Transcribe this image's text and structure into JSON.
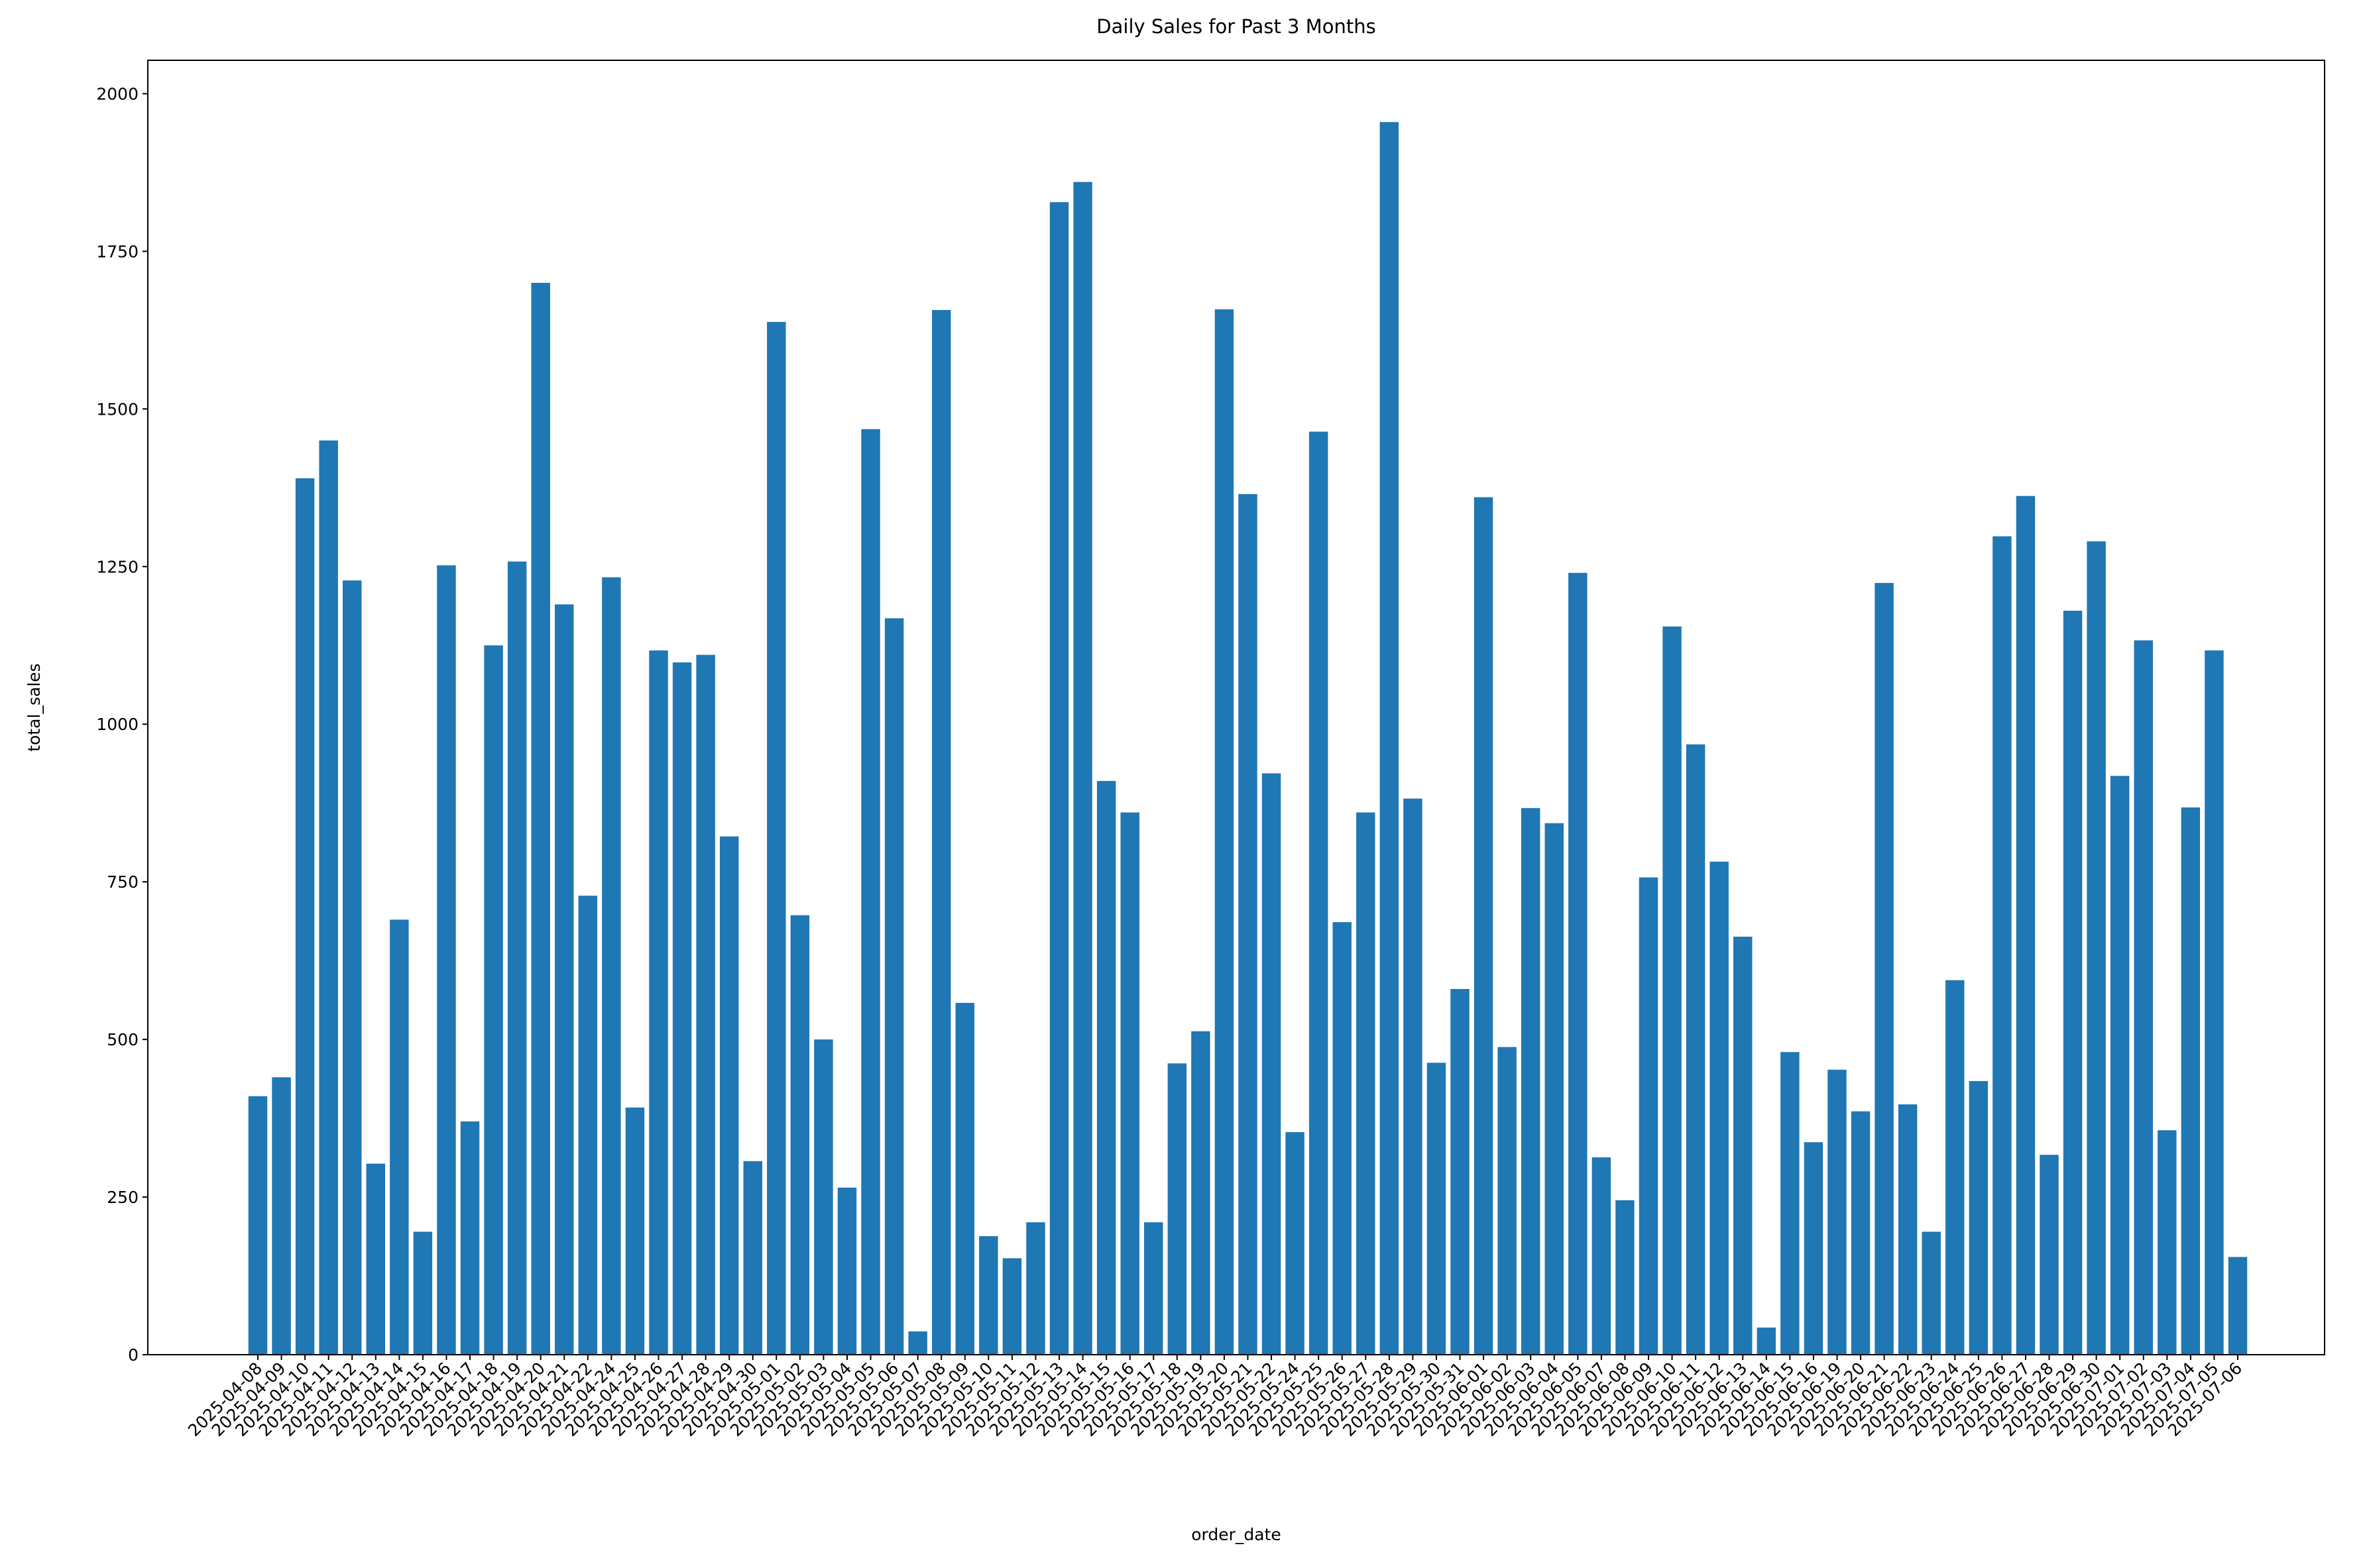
{
  "chart_data": {
    "type": "bar",
    "title": "Daily Sales for Past 3 Months",
    "x_label": "order_date",
    "y_label": "total_sales",
    "color": "#1f77b4",
    "categories": [
      "2025-04-08",
      "2025-04-09",
      "2025-04-10",
      "2025-04-11",
      "2025-04-12",
      "2025-04-13",
      "2025-04-14",
      "2025-04-15",
      "2025-04-16",
      "2025-04-17",
      "2025-04-18",
      "2025-04-19",
      "2025-04-20",
      "2025-04-21",
      "2025-04-22",
      "2025-04-24",
      "2025-04-25",
      "2025-04-26",
      "2025-04-27",
      "2025-04-28",
      "2025-04-29",
      "2025-04-30",
      "2025-05-01",
      "2025-05-02",
      "2025-05-03",
      "2025-05-04",
      "2025-05-05",
      "2025-05-06",
      "2025-05-07",
      "2025-05-08",
      "2025-05-09",
      "2025-05-10",
      "2025-05-11",
      "2025-05-12",
      "2025-05-13",
      "2025-05-14",
      "2025-05-15",
      "2025-05-16",
      "2025-05-17",
      "2025-05-18",
      "2025-05-19",
      "2025-05-20",
      "2025-05-21",
      "2025-05-22",
      "2025-05-24",
      "2025-05-25",
      "2025-05-26",
      "2025-05-27",
      "2025-05-28",
      "2025-05-29",
      "2025-05-30",
      "2025-05-31",
      "2025-06-01",
      "2025-06-02",
      "2025-06-03",
      "2025-06-04",
      "2025-06-05",
      "2025-06-07",
      "2025-06-08",
      "2025-06-09",
      "2025-06-10",
      "2025-06-11",
      "2025-06-12",
      "2025-06-13",
      "2025-06-14",
      "2025-06-15",
      "2025-06-16",
      "2025-06-19",
      "2025-06-20",
      "2025-06-21",
      "2025-06-22",
      "2025-06-23",
      "2025-06-24",
      "2025-06-25",
      "2025-06-26",
      "2025-06-27",
      "2025-06-28",
      "2025-06-29",
      "2025-06-30",
      "2025-07-01",
      "2025-07-02",
      "2025-07-03",
      "2025-07-04",
      "2025-07-05",
      "2025-07-06"
    ],
    "values": [
      410,
      440,
      1390,
      1450,
      1228,
      303,
      690,
      195,
      1252,
      370,
      1125,
      1258,
      1700,
      1190,
      728,
      1233,
      392,
      1117,
      1098,
      1110,
      822,
      307,
      1638,
      697,
      500,
      265,
      1468,
      1168,
      37,
      1657,
      558,
      188,
      153,
      210,
      1828,
      1860,
      910,
      860,
      210,
      462,
      513,
      1658,
      1365,
      922,
      353,
      1464,
      686,
      860,
      1955,
      882,
      463,
      580,
      1360,
      488,
      867,
      843,
      1240,
      313,
      245,
      757,
      1155,
      968,
      782,
      663,
      43,
      480,
      337,
      452,
      386,
      1224,
      397,
      195,
      594,
      434,
      1298,
      1362,
      317,
      1180,
      1290,
      918,
      1133,
      356,
      868,
      1117,
      155
    ],
    "ylim": [
      0,
      2053
    ],
    "yticks": [
      0,
      250,
      500,
      750,
      1000,
      1250,
      1500,
      1750,
      2000
    ]
  }
}
